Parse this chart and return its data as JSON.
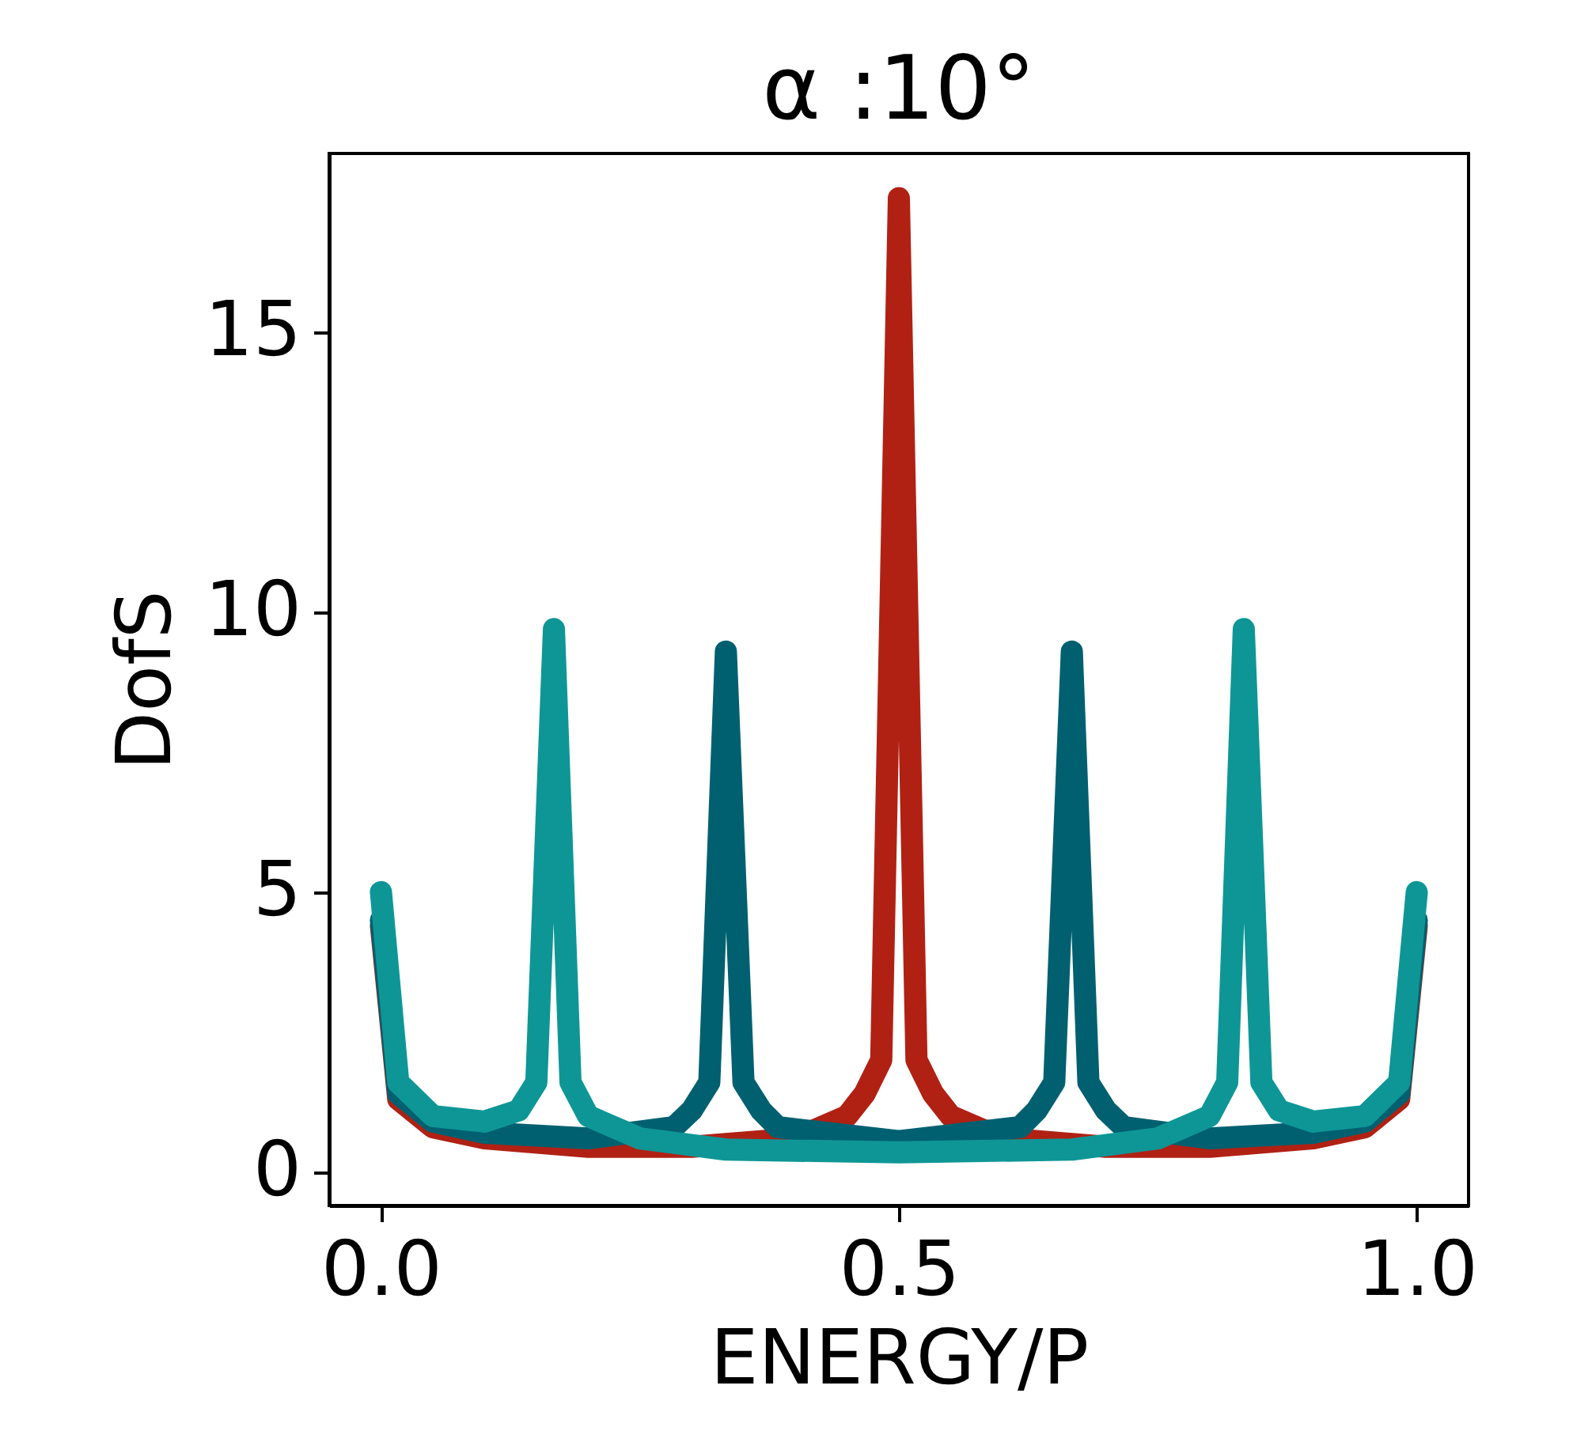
{
  "chart_data": {
    "type": "line",
    "title": "α :10°",
    "xlabel": "ENERGY/P",
    "ylabel": "DofS",
    "xlim": [
      -0.05,
      1.05
    ],
    "ylim": [
      -0.6,
      18.2
    ],
    "xticks": [
      {
        "value": 0,
        "label": "0.0"
      },
      {
        "value": 0.5,
        "label": "0.5"
      },
      {
        "value": 1,
        "label": "1.0"
      }
    ],
    "yticks": [
      0,
      5,
      10,
      15
    ],
    "grid": false,
    "marker": "none",
    "line_style": "solid",
    "series": [
      {
        "color": "#b02114",
        "x": [
          0,
          0.0167,
          0.05,
          0.1,
          0.2,
          0.3,
          0.4,
          0.45,
          0.467,
          0.483,
          0.5,
          0.517,
          0.533,
          0.55,
          0.6,
          0.7,
          0.8,
          0.9,
          0.95,
          0.983,
          1
        ],
        "values": [
          4.4,
          1.3,
          0.8,
          0.6,
          0.45,
          0.45,
          0.6,
          1.0,
          1.4,
          2.0,
          17.4,
          2.0,
          1.4,
          1.0,
          0.6,
          0.45,
          0.45,
          0.6,
          0.8,
          1.3,
          4.4
        ]
      },
      {
        "color": "#006070",
        "x": [
          0,
          0.0167,
          0.05,
          0.1,
          0.2,
          0.283,
          0.3,
          0.317,
          0.333,
          0.35,
          0.367,
          0.383,
          0.5,
          0.617,
          0.633,
          0.65,
          0.667,
          0.683,
          0.7,
          0.717,
          0.8,
          0.9,
          0.95,
          0.983,
          1
        ],
        "values": [
          4.5,
          1.4,
          0.9,
          0.7,
          0.6,
          0.8,
          1.1,
          1.6,
          9.3,
          1.6,
          1.1,
          0.8,
          0.55,
          0.8,
          1.1,
          1.6,
          9.3,
          1.6,
          1.1,
          0.8,
          0.6,
          0.7,
          0.9,
          1.4,
          4.5
        ]
      },
      {
        "color": "#0e9696",
        "x": [
          0,
          0.0167,
          0.05,
          0.1,
          0.133,
          0.15,
          0.167,
          0.183,
          0.2,
          0.25,
          0.333,
          0.5,
          0.667,
          0.75,
          0.8,
          0.817,
          0.833,
          0.85,
          0.867,
          0.9,
          0.95,
          0.983,
          1
        ],
        "values": [
          5.0,
          1.6,
          1.0,
          0.9,
          1.1,
          1.6,
          9.7,
          1.6,
          1.0,
          0.6,
          0.4,
          0.35,
          0.4,
          0.6,
          1.0,
          1.6,
          9.7,
          1.6,
          1.1,
          0.9,
          1.0,
          1.6,
          5.0
        ]
      }
    ]
  }
}
